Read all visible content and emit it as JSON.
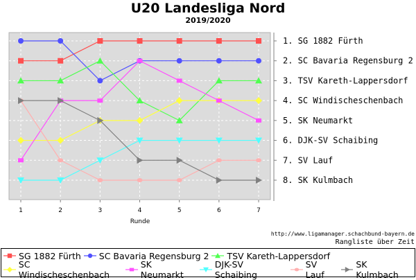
{
  "chart_data": {
    "type": "line",
    "title": "U20 Landesliga Nord",
    "subtitle": "2019/2020",
    "xlabel": "Runde",
    "ylabel": "",
    "x": [
      1,
      2,
      3,
      4,
      5,
      6,
      7
    ],
    "ylim": [
      1,
      8
    ],
    "y_inverted": true,
    "grid": true,
    "legend_placement": "bottom",
    "rank_labels": [
      "1. SG 1882 Fürth",
      "2. SC Bavaria Regensburg 2",
      "3. TSV Kareth-Lappersdorf",
      "4. SC Windischeschenbach",
      "5. SK Neumarkt",
      "6. DJK-SV Schaibing",
      "7. SV Lauf",
      "8. SK Kulmbach"
    ],
    "series": [
      {
        "name": "SG 1882 Fürth",
        "color": "#ff5050",
        "marker": "square",
        "values": [
          2,
          2,
          1,
          1,
          1,
          1,
          1
        ]
      },
      {
        "name": "SC Bavaria Regensburg 2",
        "color": "#5050ff",
        "marker": "circle",
        "values": [
          1,
          1,
          3,
          2,
          2,
          2,
          2
        ]
      },
      {
        "name": "TSV Kareth-Lappersdorf",
        "color": "#50ff50",
        "marker": "triangle-up",
        "values": [
          3,
          3,
          2,
          4,
          5,
          3,
          3
        ]
      },
      {
        "name": "SC Windischeschenbach",
        "color": "#ffff40",
        "marker": "diamond",
        "values": [
          6,
          6,
          5,
          5,
          4,
          4,
          4
        ]
      },
      {
        "name": "SK Neumarkt",
        "color": "#ff50ff",
        "marker": "small-square",
        "values": [
          7,
          4,
          4,
          2,
          3,
          4,
          5
        ]
      },
      {
        "name": "DJK-SV Schaibing",
        "color": "#50ffff",
        "marker": "triangle-down",
        "values": [
          8,
          8,
          7,
          6,
          6,
          6,
          6
        ]
      },
      {
        "name": "SV Lauf",
        "color": "#ffb0b0",
        "marker": "small-circle",
        "values": [
          4,
          7,
          8,
          8,
          8,
          7,
          7
        ]
      },
      {
        "name": "SK Kulmbach",
        "color": "#808080",
        "marker": "triangle-right",
        "values": [
          4,
          4,
          5,
          7,
          7,
          8,
          8
        ]
      }
    ]
  },
  "footer": {
    "url": "http://www.ligamanager.schachbund-bayern.de",
    "caption": "Rangliste über Zeit"
  }
}
